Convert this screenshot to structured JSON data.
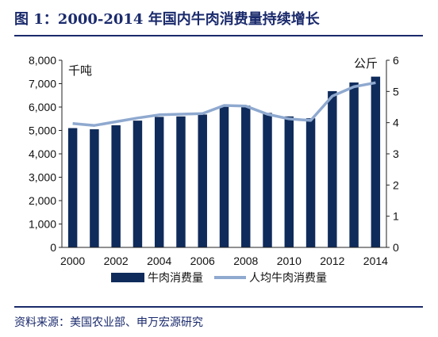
{
  "header": {
    "title": "图 1：2000-2014 年国内牛肉消费量持续增长"
  },
  "footer": {
    "source": "资料来源：美国农业部、申万宏源研究"
  },
  "chart_data": {
    "type": "bar",
    "x": [
      2000,
      2001,
      2002,
      2003,
      2004,
      2005,
      2006,
      2007,
      2008,
      2009,
      2010,
      2011,
      2012,
      2013,
      2014
    ],
    "x_tick_labels": [
      "2000",
      "2002",
      "2004",
      "2006",
      "2008",
      "2010",
      "2012",
      "2014"
    ],
    "left_axis": {
      "unit_label": "千吨",
      "ylim": [
        0,
        8000
      ],
      "tick_labels": [
        "0",
        "1,000",
        "2,000",
        "3,000",
        "4,000",
        "5,000",
        "6,000",
        "7,000",
        "8,000"
      ]
    },
    "right_axis": {
      "unit_label": "公斤",
      "ylim": [
        0,
        6
      ],
      "tick_labels": [
        "0",
        "1",
        "2",
        "3",
        "4",
        "5",
        "6"
      ]
    },
    "series": [
      {
        "name": "牛肉消费量",
        "type": "bar",
        "axis": "left",
        "color": "#0f2b5b",
        "values": [
          5100,
          5050,
          5220,
          5420,
          5580,
          5600,
          5680,
          6050,
          6060,
          5750,
          5600,
          5520,
          6680,
          7050,
          7300
        ]
      },
      {
        "name": "人均牛肉消费量",
        "type": "line",
        "axis": "right",
        "color": "#8fa9cf",
        "values": [
          3.97,
          3.91,
          4.03,
          4.15,
          4.25,
          4.27,
          4.29,
          4.55,
          4.53,
          4.27,
          4.12,
          4.07,
          4.85,
          5.15,
          5.28
        ]
      }
    ],
    "grid": false,
    "legend": "bottom"
  }
}
